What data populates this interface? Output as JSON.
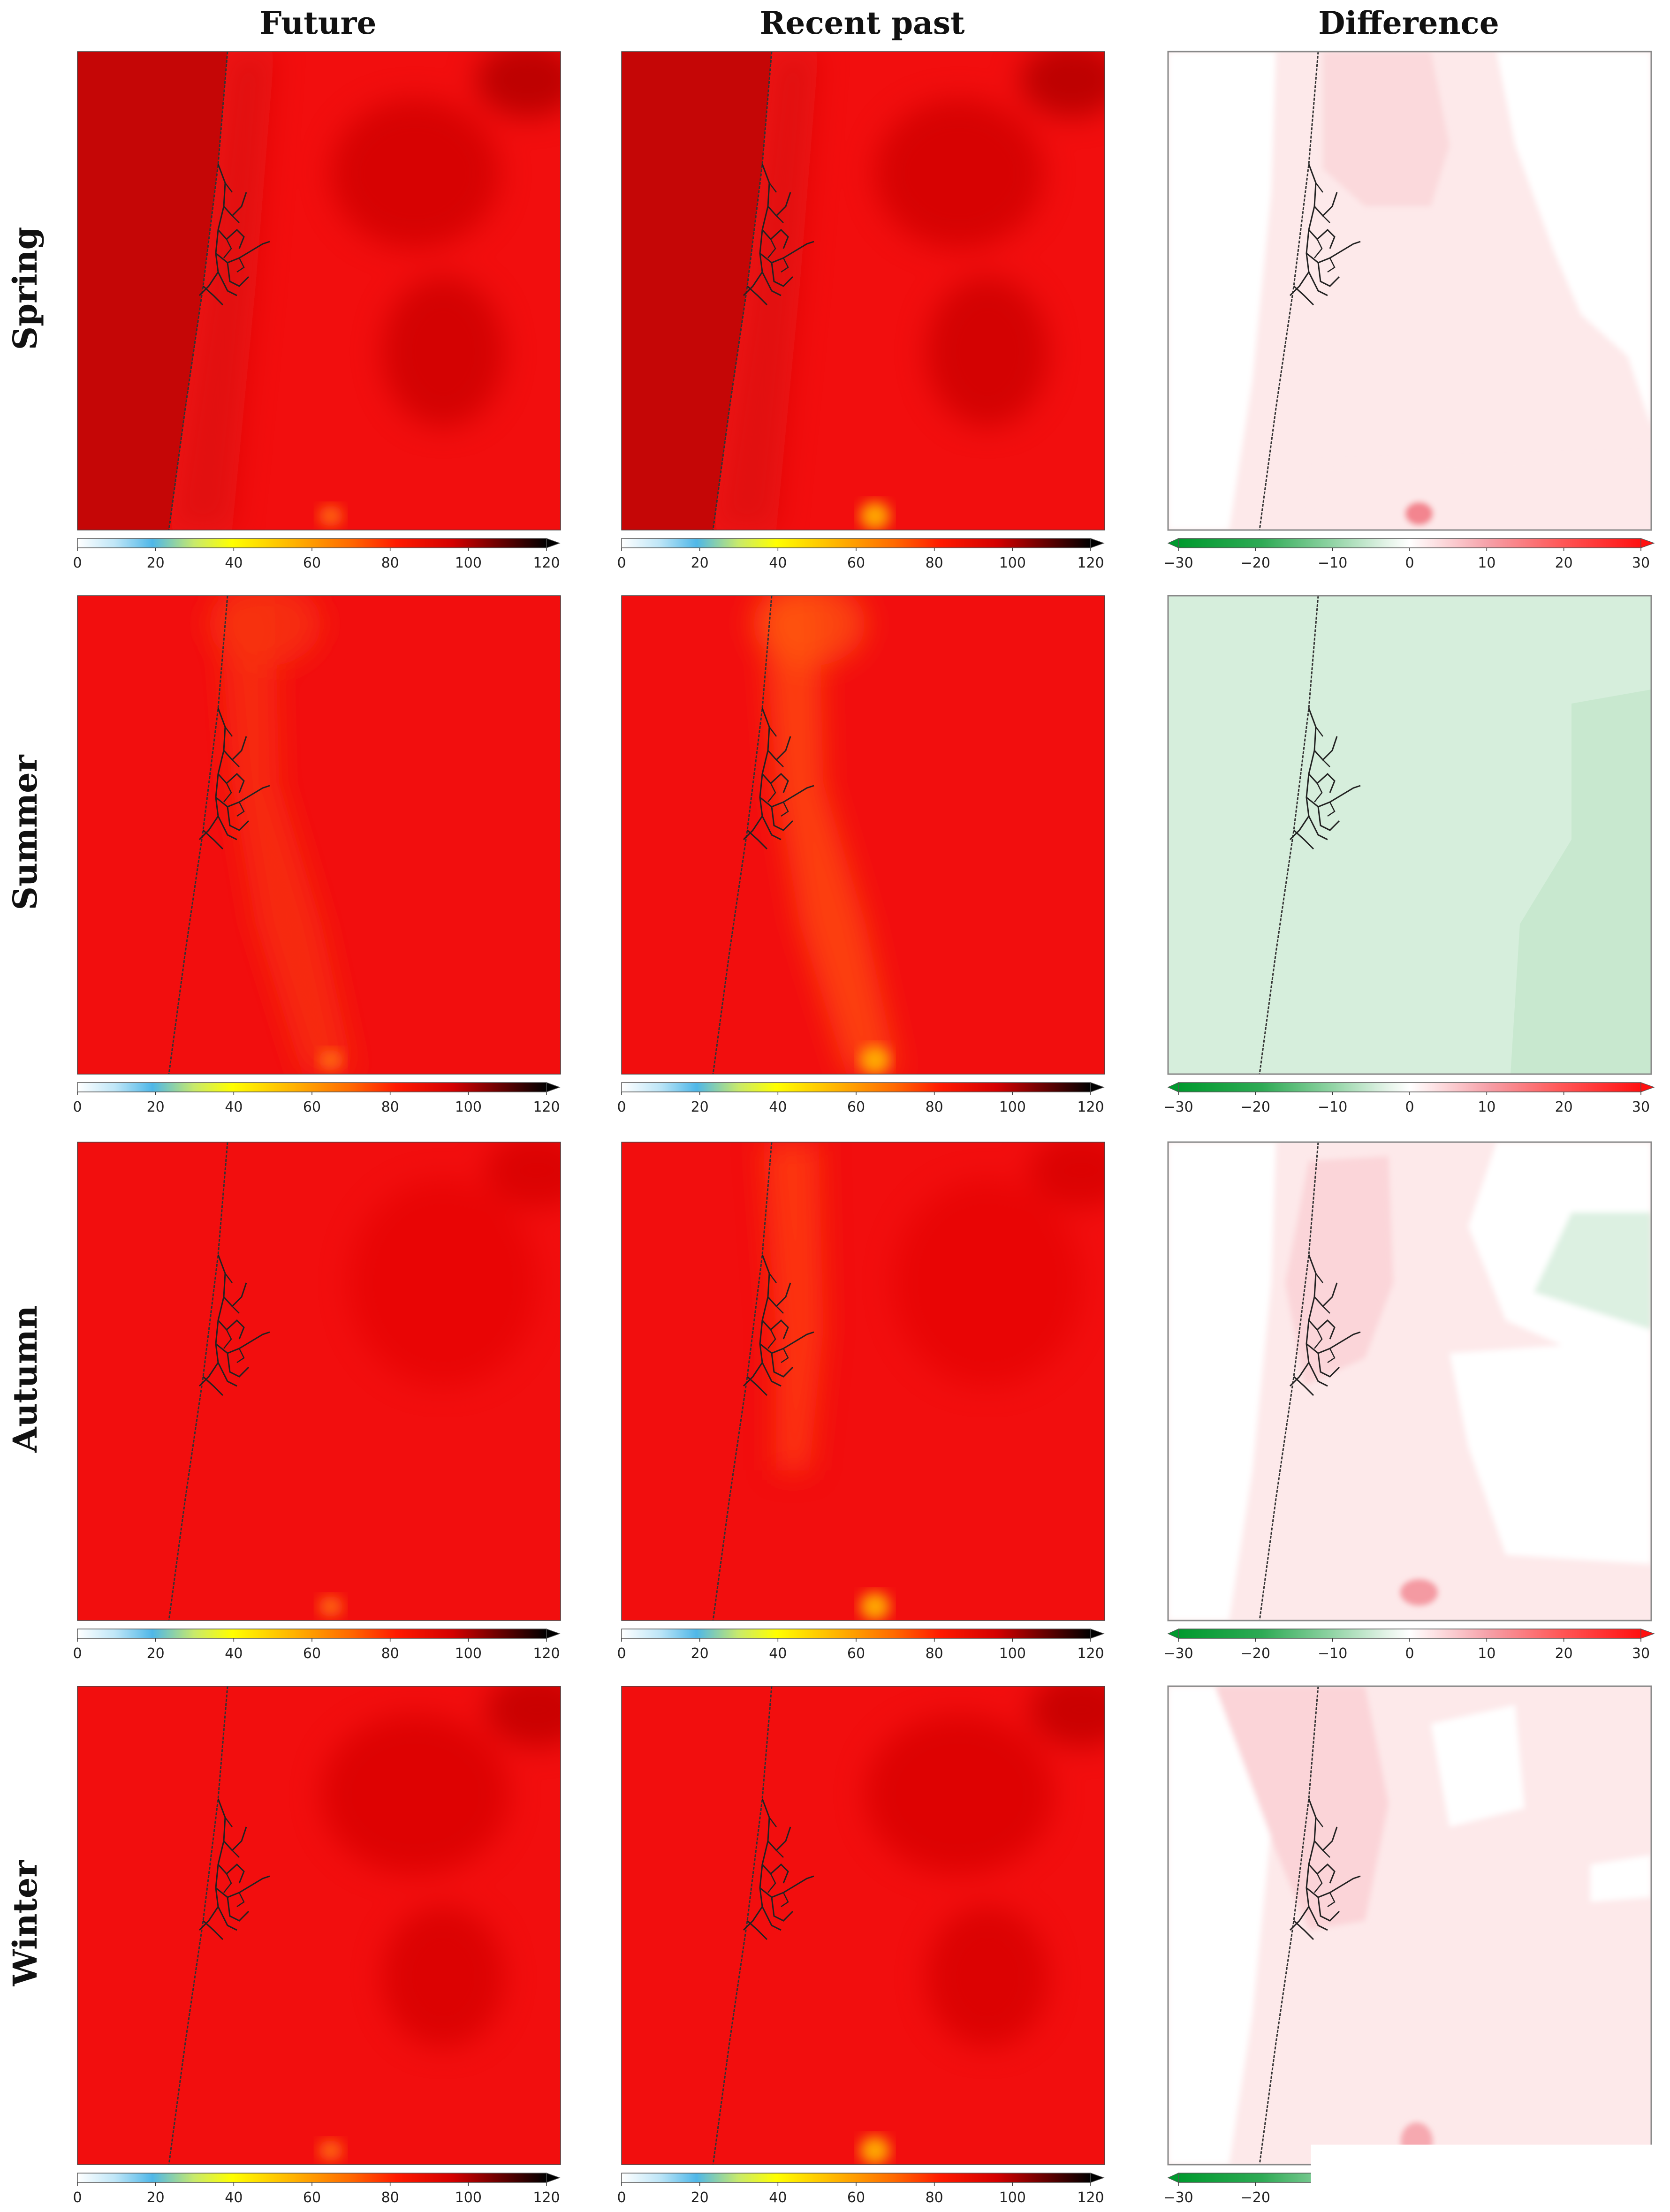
{
  "columns": [
    "Future",
    "Recent past",
    "Difference"
  ],
  "rows": [
    "Spring",
    "Summer",
    "Autumn",
    "Winter"
  ],
  "colorbars": {
    "absolute": {
      "ticks": [
        "0",
        "20",
        "40",
        "60",
        "80",
        "100",
        "120"
      ],
      "range": [
        0,
        120
      ],
      "extend": "max",
      "colors": [
        "#ffffff",
        "#4fb7e8",
        "#ffff00",
        "#ff9800",
        "#ff1a00",
        "#c80000",
        "#000000"
      ]
    },
    "difference": {
      "ticks": [
        "−30",
        "−20",
        "−10",
        "0",
        "10",
        "20",
        "30"
      ],
      "range": [
        -30,
        30
      ],
      "extend": "both",
      "colors": [
        "#009a2e",
        "#8fd3a3",
        "#ffffff",
        "#f6a0a8",
        "#ff1010"
      ]
    }
  },
  "panels": {
    "absolute_base_color": "#f20e0e",
    "difference_base_color": "#fde9ea",
    "difference_green_color": "#d6eedc",
    "difference_white_color": "#ffffff"
  }
}
